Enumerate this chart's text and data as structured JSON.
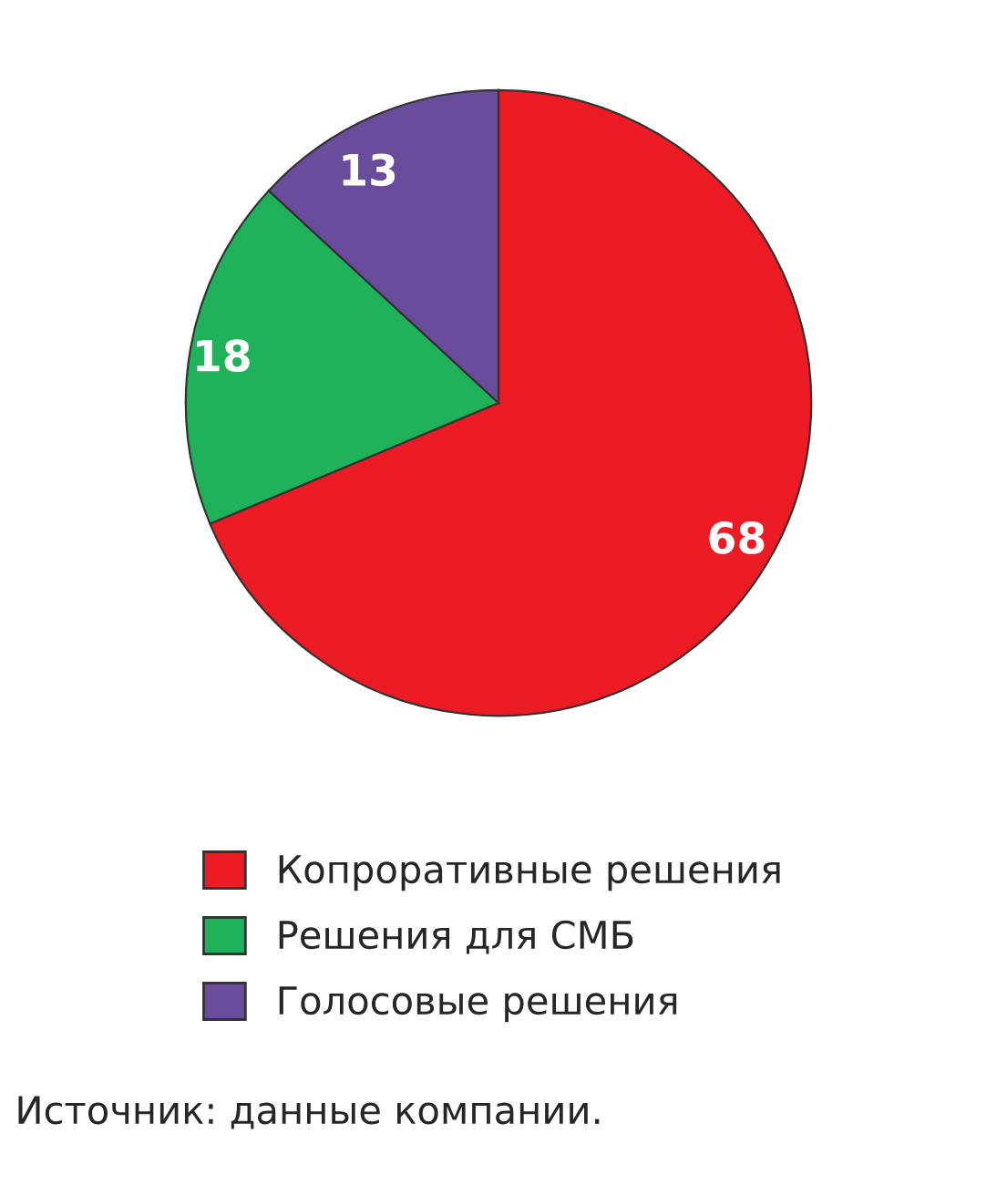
{
  "chart_data": {
    "type": "pie",
    "categories": [
      "Копроративные решения",
      "Решения для СМБ",
      "Голосовые решения"
    ],
    "values": [
      68,
      18,
      13
    ],
    "colors": [
      "#ed1c24",
      "#1fb25a",
      "#6a4c9c"
    ],
    "data_labels": true,
    "legend": "bottom",
    "annotations": [
      "Источник: данные компании."
    ]
  }
}
